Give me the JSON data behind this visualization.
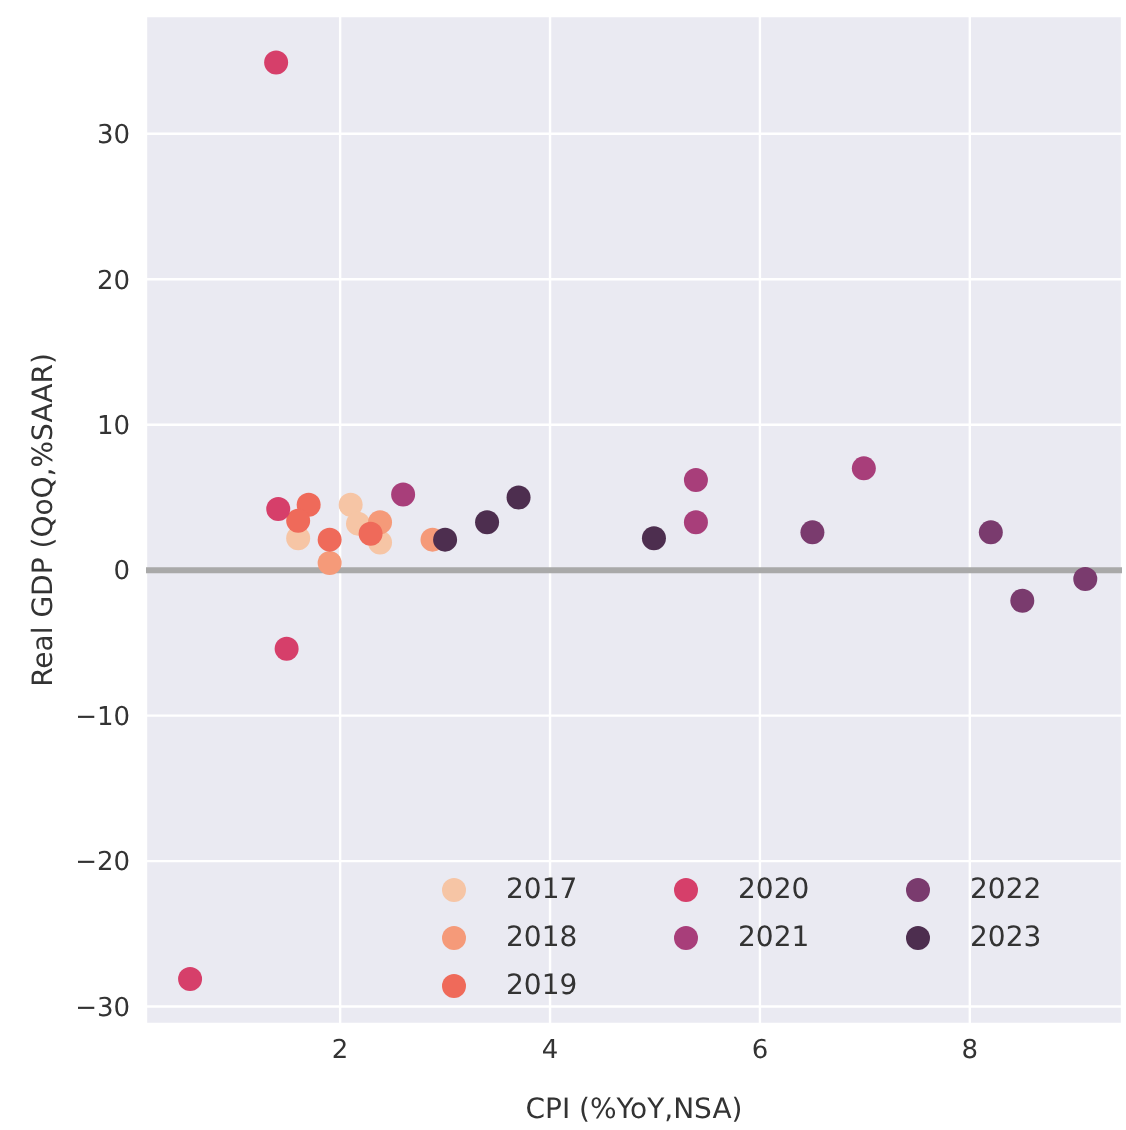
{
  "chart_data": {
    "type": "scatter",
    "xlabel": "CPI (%YoY,NSA)",
    "ylabel": "Real GDP (QoQ,%SAAR)",
    "xlim": [
      0.15,
      9.45
    ],
    "ylim": [
      -31.2,
      38.1
    ],
    "xticks": [
      2,
      4,
      6,
      8
    ],
    "yticks": [
      -30,
      -20,
      -10,
      0,
      10,
      20,
      30
    ],
    "grid": true,
    "legend": "bottom right",
    "marker": "circle",
    "ref_lines": [
      {
        "axis": "y",
        "value": 0,
        "color": "#a9a9a9"
      }
    ],
    "series": [
      {
        "name": "2017",
        "color": "#f6c5a5",
        "x": [
          1.6,
          2.1,
          2.17,
          2.38
        ],
        "values": [
          2.2,
          4.5,
          3.2,
          1.9
        ]
      },
      {
        "name": "2018",
        "color": "#f59a79",
        "x": [
          1.9,
          2.24,
          2.38,
          2.88
        ],
        "values": [
          0.5,
          null,
          3.3,
          2.1
        ]
      },
      {
        "name": "2019",
        "color": "#ef6a5a",
        "x": [
          1.7,
          1.6,
          1.9,
          2.29
        ],
        "values": [
          4.5,
          3.4,
          2.1,
          2.5
        ]
      },
      {
        "name": "2020",
        "color": "#d63f6a",
        "x": [
          1.41,
          1.49,
          0.57,
          1.39
        ],
        "values": [
          4.2,
          -5.4,
          -28.1,
          34.9
        ]
      },
      {
        "name": "2021",
        "color": "#a83e7a",
        "x": [
          2.6,
          5.39,
          5.39,
          6.99
        ],
        "values": [
          5.2,
          6.2,
          3.3,
          7.0
        ]
      },
      {
        "name": "2022",
        "color": "#7a3b6e",
        "x": [
          6.5,
          8.2,
          8.5,
          9.1
        ],
        "values": [
          2.6,
          2.6,
          -2.1,
          -0.6
        ]
      },
      {
        "name": "2023",
        "color": "#4d2e4f",
        "x": [
          3.0,
          3.4,
          3.7,
          4.99
        ],
        "values": [
          2.1,
          3.3,
          5.0,
          2.2
        ]
      }
    ]
  }
}
